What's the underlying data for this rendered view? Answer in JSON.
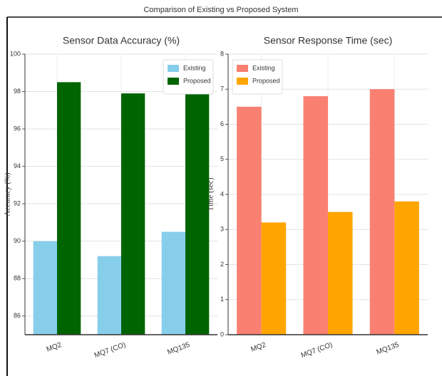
{
  "title": "Comparison of Existing vs Proposed System",
  "chart_data": [
    {
      "type": "bar",
      "title": "Sensor Data Accuracy (%)",
      "y_label": "Accuracy (%)",
      "categories": [
        "MQ2",
        "MQ7 (CO)",
        "MQ135"
      ],
      "series": [
        {
          "name": "Existing",
          "color": "#87ceeb",
          "values": [
            90.0,
            89.2,
            90.5
          ]
        },
        {
          "name": "Proposed",
          "color": "#006400",
          "values": [
            98.5,
            97.9,
            97.9
          ]
        }
      ],
      "ylim": [
        85,
        100
      ],
      "yticks": [
        86,
        88,
        90,
        92,
        94,
        96,
        98,
        100
      ],
      "grid": true,
      "legend": "upper right"
    },
    {
      "type": "bar",
      "title": "Sensor Response Time (sec)",
      "y_label": "Time (sec)",
      "categories": [
        "MQ2",
        "MQ7 (CO)",
        "MQ135"
      ],
      "series": [
        {
          "name": "Existing",
          "color": "#fa8072",
          "values": [
            6.5,
            6.8,
            7.0
          ]
        },
        {
          "name": "Proposed",
          "color": "#ffa500",
          "values": [
            3.2,
            3.5,
            3.8
          ]
        }
      ],
      "ylim": [
        0,
        8
      ],
      "yticks": [
        0,
        1,
        2,
        3,
        4,
        5,
        6,
        7,
        8
      ],
      "grid": true,
      "legend": "upper left"
    }
  ]
}
